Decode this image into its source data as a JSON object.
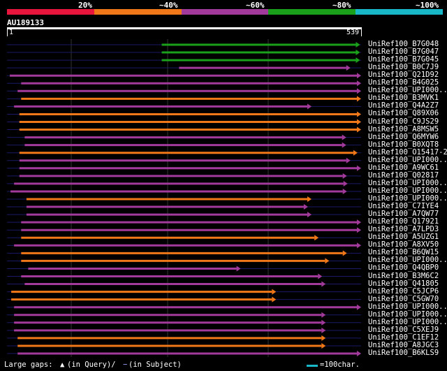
{
  "identity_scale": {
    "labels": [
      "20%",
      "~40%",
      "~60%",
      "~80%",
      "~100%"
    ],
    "colors": [
      "#e8163c",
      "#f07818",
      "#a23a9c",
      "#1aa01a",
      "#18b8c8"
    ]
  },
  "query": {
    "accession": "AU189133",
    "start": "1",
    "end": "539"
  },
  "hits": [
    {
      "label": "UniRef100_B7G048",
      "color": "#1aa01a",
      "start": 0.437,
      "end": 0.997
    },
    {
      "label": "UniRef100_B7G047",
      "color": "#1aa01a",
      "start": 0.437,
      "end": 0.997
    },
    {
      "label": "UniRef100_B7G045",
      "color": "#1aa01a",
      "start": 0.437,
      "end": 0.997
    },
    {
      "label": "UniRef100_B0C7J9",
      "color": "#a23a9c",
      "start": 0.486,
      "end": 0.97
    },
    {
      "label": "UniRef100_Q21D92",
      "color": "#a23a9c",
      "start": 0.008,
      "end": 1.0
    },
    {
      "label": "UniRef100_B4G025",
      "color": "#a23a9c",
      "start": 0.04,
      "end": 1.0
    },
    {
      "label": "UniRef100_UPI000...",
      "color": "#a23a9c",
      "start": 0.03,
      "end": 1.0
    },
    {
      "label": "UniRef100_B3MVK1",
      "color": "#f07818",
      "start": 0.04,
      "end": 1.0
    },
    {
      "label": "UniRef100_Q4A2Z7",
      "color": "#a23a9c",
      "start": 0.02,
      "end": 0.86
    },
    {
      "label": "UniRef100_Q89X06",
      "color": "#f07818",
      "start": 0.035,
      "end": 1.0
    },
    {
      "label": "UniRef100_C9JS29",
      "color": "#f07818",
      "start": 0.035,
      "end": 1.0
    },
    {
      "label": "UniRef100_A8MSW5",
      "color": "#f07818",
      "start": 0.035,
      "end": 1.0
    },
    {
      "label": "UniRef100_Q6MYW6",
      "color": "#a23a9c",
      "start": 0.05,
      "end": 0.958
    },
    {
      "label": "UniRef100_B0XQT8",
      "color": "#a23a9c",
      "start": 0.05,
      "end": 0.958
    },
    {
      "label": "UniRef100_O15417-2",
      "color": "#f07818",
      "start": 0.035,
      "end": 0.99
    },
    {
      "label": "UniRef100_UPI000...",
      "color": "#a23a9c",
      "start": 0.035,
      "end": 0.97
    },
    {
      "label": "UniRef100_A9WC61",
      "color": "#a23a9c",
      "start": 0.035,
      "end": 1.0
    },
    {
      "label": "UniRef100_Q02817",
      "color": "#a23a9c",
      "start": 0.035,
      "end": 0.96
    },
    {
      "label": "UniRef100_UPI000...",
      "color": "#a23a9c",
      "start": 0.02,
      "end": 0.962
    },
    {
      "label": "UniRef100_UPI000...",
      "color": "#a23a9c",
      "start": 0.01,
      "end": 0.96
    },
    {
      "label": "UniRef100_UPI000...",
      "color": "#f07818",
      "start": 0.055,
      "end": 0.86
    },
    {
      "label": "UniRef100_C7IYE4",
      "color": "#a23a9c",
      "start": 0.055,
      "end": 0.85
    },
    {
      "label": "UniRef100_A7QW77",
      "color": "#a23a9c",
      "start": 0.055,
      "end": 0.86
    },
    {
      "label": "UniRef100_Q17921",
      "color": "#a23a9c",
      "start": 0.04,
      "end": 1.0
    },
    {
      "label": "UniRef100_A7LPD3",
      "color": "#a23a9c",
      "start": 0.04,
      "end": 1.0
    },
    {
      "label": "UniRef100_A5UZG1",
      "color": "#f07818",
      "start": 0.04,
      "end": 0.88
    },
    {
      "label": "UniRef100_A8XV50",
      "color": "#a23a9c",
      "start": 0.02,
      "end": 1.0
    },
    {
      "label": "UniRef100_B6QW15",
      "color": "#f07818",
      "start": 0.04,
      "end": 0.96
    },
    {
      "label": "UniRef100_UPI000...",
      "color": "#f07818",
      "start": 0.04,
      "end": 0.91
    },
    {
      "label": "UniRef100_Q4QBP0",
      "color": "#a23a9c",
      "start": 0.06,
      "end": 0.66
    },
    {
      "label": "UniRef100_B3M6C2",
      "color": "#a23a9c",
      "start": 0.04,
      "end": 0.89
    },
    {
      "label": "UniRef100_Q41805",
      "color": "#a23a9c",
      "start": 0.05,
      "end": 0.9
    },
    {
      "label": "UniRef100_C5JCP6",
      "color": "#f07818",
      "start": 0.012,
      "end": 0.76
    },
    {
      "label": "UniRef100_C5GW70",
      "color": "#f07818",
      "start": 0.012,
      "end": 0.76
    },
    {
      "label": "UniRef100_UPI000...",
      "color": "#a23a9c",
      "start": 0.02,
      "end": 1.0
    },
    {
      "label": "UniRef100_UPI000...",
      "color": "#a23a9c",
      "start": 0.02,
      "end": 0.9
    },
    {
      "label": "UniRef100_UPI000...",
      "color": "#a23a9c",
      "start": 0.02,
      "end": 0.9
    },
    {
      "label": "UniRef100_C5XEJ9",
      "color": "#a23a9c",
      "start": 0.02,
      "end": 0.9
    },
    {
      "label": "UniRef100_C1EF12",
      "color": "#f07818",
      "start": 0.03,
      "end": 0.9
    },
    {
      "label": "UniRef100_A8JGC3",
      "color": "#f07818",
      "start": 0.03,
      "end": 0.9
    },
    {
      "label": "UniRef100_B6KLS9",
      "color": "#a23a9c",
      "start": 0.03,
      "end": 1.0
    }
  ],
  "footer": {
    "gaps_text": "Large gaps:",
    "query_text": "(in Query)/",
    "subject_text": "(in Subject)",
    "scale_text": "=100char.",
    "scale_color": "#18b8c8"
  }
}
